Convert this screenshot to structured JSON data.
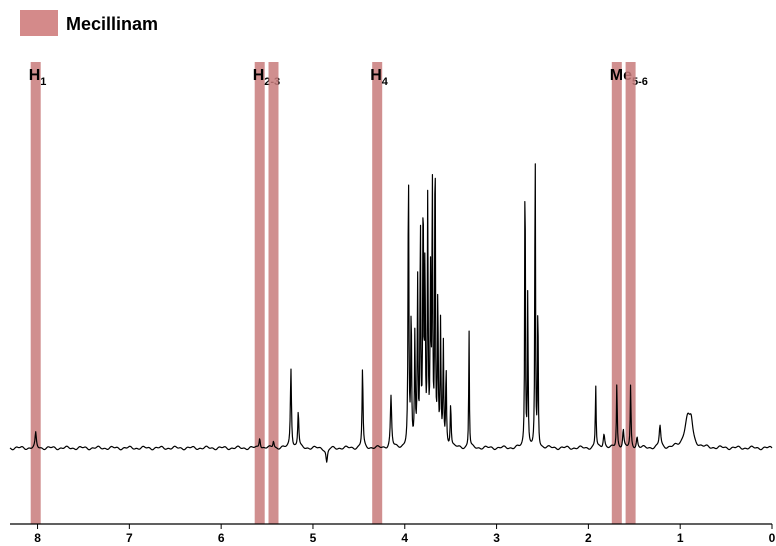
{
  "chart_data": {
    "type": "line",
    "title": "",
    "xlabel": "",
    "ylabel": "",
    "xlim": [
      8.3,
      0
    ],
    "x_reversed": true,
    "ylim": [
      -0.12,
      1.0
    ],
    "ticks": [
      "8",
      "7",
      "6",
      "5",
      "4",
      "3",
      "2",
      "1",
      "0"
    ],
    "tick_values": [
      8,
      7,
      6,
      5,
      4,
      3,
      2,
      1,
      0
    ],
    "legend": {
      "label": "Mecillinam",
      "color": "#d48a8a",
      "placement": "top-left"
    },
    "bands": [
      {
        "ppm": 8.02,
        "label": "H",
        "sub": "1"
      },
      {
        "ppm": 5.58,
        "label": "H",
        "sub": "2-3"
      },
      {
        "ppm": 5.43,
        "label": "",
        "sub": ""
      },
      {
        "ppm": 4.3,
        "label": "H",
        "sub": "4"
      },
      {
        "ppm": 1.69,
        "label": "Me",
        "sub": "5-6"
      },
      {
        "ppm": 1.54,
        "label": "",
        "sub": ""
      }
    ],
    "series": [
      {
        "peaks": [
          {
            "ppm": 8.02,
            "height": 0.04,
            "width": 0.008
          },
          {
            "ppm": 5.58,
            "height": 0.03,
            "width": 0.008
          },
          {
            "ppm": 5.43,
            "height": 0.02,
            "width": 0.008
          },
          {
            "ppm": 5.24,
            "height": 0.22,
            "width": 0.007
          },
          {
            "ppm": 5.16,
            "height": 0.1,
            "width": 0.007
          },
          {
            "ppm": 4.78,
            "height": 0.19,
            "width": 0.006
          },
          {
            "ppm": 4.46,
            "height": 0.22,
            "width": 0.006
          },
          {
            "ppm": 4.15,
            "height": 0.14,
            "width": 0.008
          },
          {
            "ppm": 3.96,
            "height": 0.8,
            "width": 0.005
          },
          {
            "ppm": 3.93,
            "height": 0.38,
            "width": 0.005
          },
          {
            "ppm": 3.89,
            "height": 0.3,
            "width": 0.005
          },
          {
            "ppm": 3.86,
            "height": 0.45,
            "width": 0.005
          },
          {
            "ppm": 3.83,
            "height": 0.62,
            "width": 0.005
          },
          {
            "ppm": 3.8,
            "height": 0.7,
            "width": 0.005
          },
          {
            "ppm": 3.78,
            "height": 0.5,
            "width": 0.005
          },
          {
            "ppm": 3.75,
            "height": 0.66,
            "width": 0.005
          },
          {
            "ppm": 3.72,
            "height": 0.45,
            "width": 0.005
          },
          {
            "ppm": 3.7,
            "height": 0.74,
            "width": 0.005
          },
          {
            "ppm": 3.67,
            "height": 0.95,
            "width": 0.004
          },
          {
            "ppm": 3.64,
            "height": 0.42,
            "width": 0.005
          },
          {
            "ppm": 3.61,
            "height": 0.33,
            "width": 0.005
          },
          {
            "ppm": 3.58,
            "height": 0.28,
            "width": 0.005
          },
          {
            "ppm": 3.55,
            "height": 0.22,
            "width": 0.005
          },
          {
            "ppm": 3.5,
            "height": 0.12,
            "width": 0.006
          },
          {
            "ppm": 3.3,
            "height": 0.33,
            "width": 0.004
          },
          {
            "ppm": 2.69,
            "height": 0.89,
            "width": 0.004
          },
          {
            "ppm": 2.66,
            "height": 0.45,
            "width": 0.004
          },
          {
            "ppm": 2.58,
            "height": 0.95,
            "width": 0.004
          },
          {
            "ppm": 2.55,
            "height": 0.45,
            "width": 0.004
          },
          {
            "ppm": 1.92,
            "height": 0.17,
            "width": 0.005
          },
          {
            "ppm": 1.83,
            "height": 0.04,
            "width": 0.01
          },
          {
            "ppm": 1.69,
            "height": 0.18,
            "width": 0.005
          },
          {
            "ppm": 1.62,
            "height": 0.05,
            "width": 0.008
          },
          {
            "ppm": 1.54,
            "height": 0.17,
            "width": 0.005
          },
          {
            "ppm": 1.47,
            "height": 0.03,
            "width": 0.008
          },
          {
            "ppm": 1.22,
            "height": 0.06,
            "width": 0.01
          },
          {
            "ppm": 0.92,
            "height": 0.08,
            "width": 0.04
          },
          {
            "ppm": 0.88,
            "height": 0.05,
            "width": 0.02
          }
        ],
        "negative_peaks": [
          {
            "ppm": 4.78,
            "depth": 0.19,
            "width": 0.006
          },
          {
            "ppm": 4.85,
            "depth": 0.04,
            "width": 0.01
          },
          {
            "ppm": 2.58,
            "depth": 0.03,
            "width": 0.006
          }
        ]
      }
    ]
  }
}
